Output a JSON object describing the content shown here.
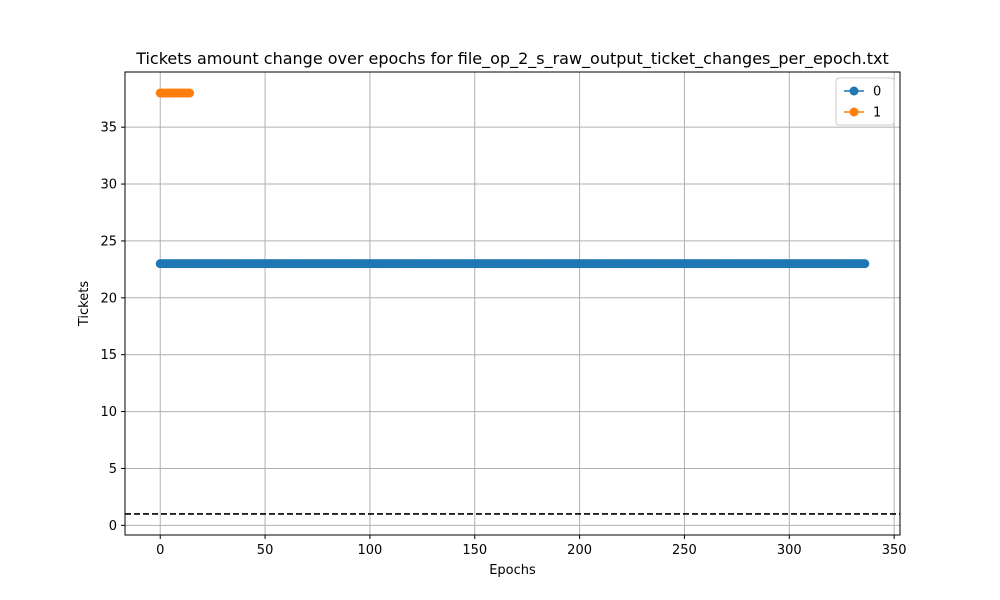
{
  "chart_data": {
    "type": "line",
    "title": "Tickets amount change over epochs for file_op_2_s_raw_output_ticket_changes_per_epoch.txt",
    "xlabel": "Epochs",
    "ylabel": "Tickets",
    "xlim": [
      -16.8,
      352.8
    ],
    "ylim": [
      -0.85,
      39.85
    ],
    "xticks": [
      0,
      50,
      100,
      150,
      200,
      250,
      300,
      350
    ],
    "yticks": [
      0,
      5,
      10,
      15,
      20,
      25,
      30,
      35
    ],
    "grid": true,
    "legend_position": "top-right",
    "series": [
      {
        "name": "0",
        "color": "#1f77b4",
        "marker": "circle",
        "x_start": 0,
        "x_end": 336,
        "y": 23
      },
      {
        "name": "1",
        "color": "#ff7f0e",
        "marker": "circle",
        "x_start": 0,
        "x_end": 14,
        "y": 38
      }
    ],
    "reference_line": {
      "y": 1,
      "style": "dashed",
      "color": "#000000"
    }
  }
}
